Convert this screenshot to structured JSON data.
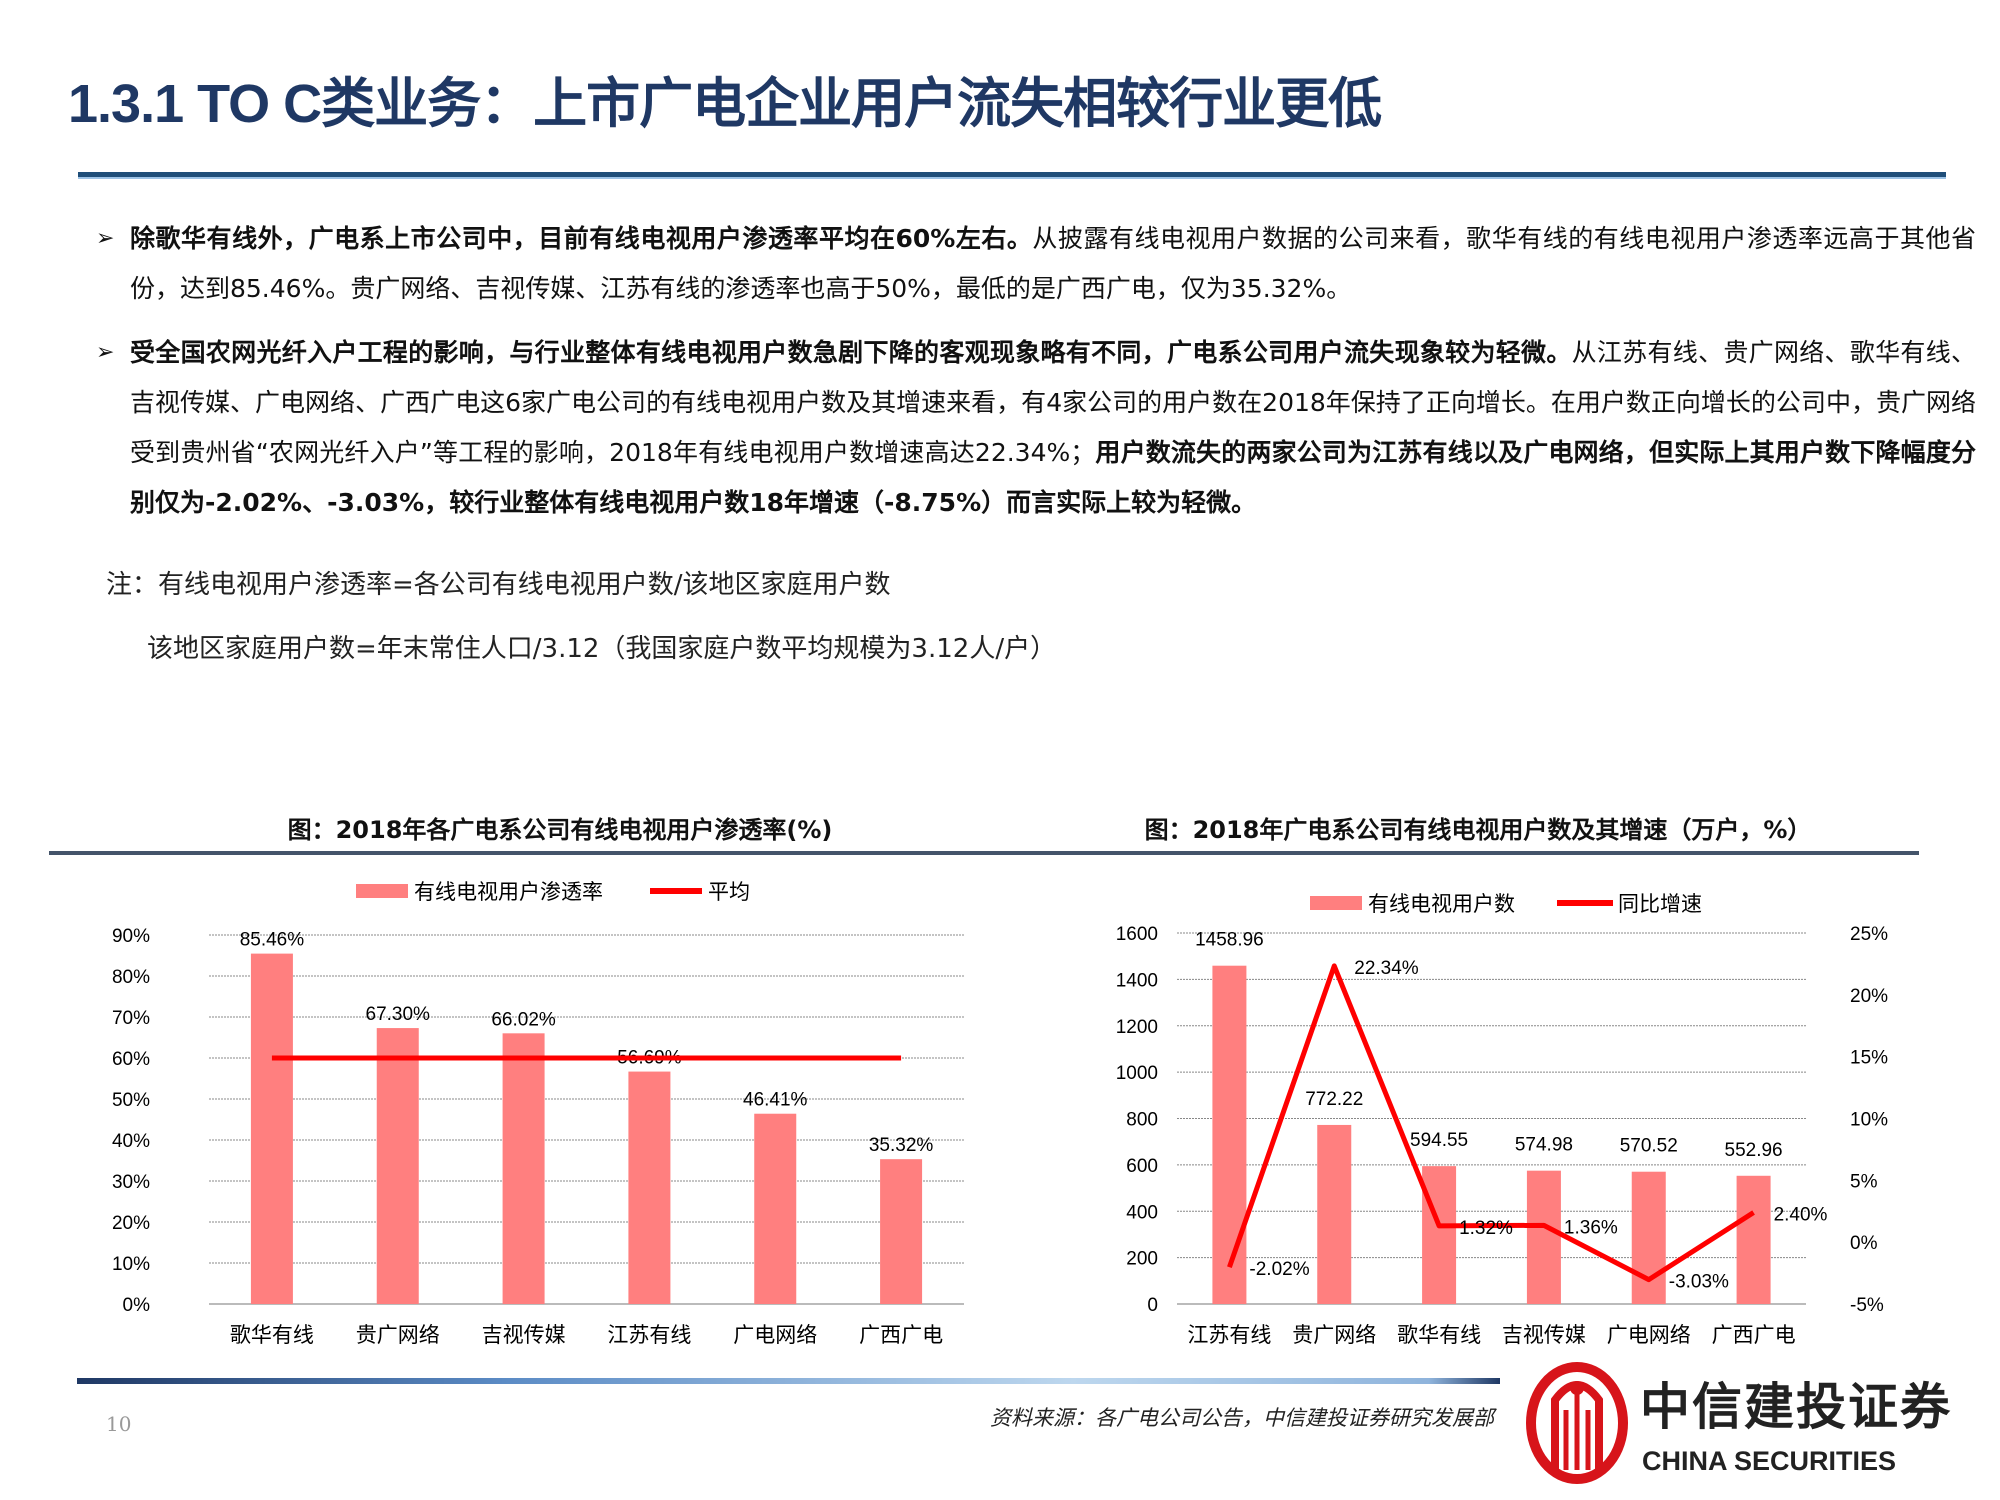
{
  "title": "1.3.1 TO C类业务：上市广电企业用户流失相较行业更低",
  "bullets": [
    {
      "segments": [
        {
          "bold": true,
          "text": "除歌华有线外，广电系上市公司中，目前有线电视用户渗透率平均在60%左右。"
        },
        {
          "bold": false,
          "text": "从披露有线电视用户数据的公司来看，歌华有线的有线电视用户渗透率远高于其他省份，达到85.46%。贵广网络、吉视传媒、江苏有线的渗透率也高于50%，最低的是广西广电，仅为35.32%。"
        }
      ]
    },
    {
      "segments": [
        {
          "bold": true,
          "text": "受全国农网光纤入户工程的影响，与行业整体有线电视用户数急剧下降的客观现象略有不同，广电系公司用户流失现象较为轻微。"
        },
        {
          "bold": false,
          "text": "从江苏有线、贵广网络、歌华有线、吉视传媒、广电网络、广西广电这6家广电公司的有线电视用户数及其增速来看，有4家公司的用户数在2018年保持了正向增长。在用户数正向增长的公司中，贵广网络受到贵州省“农网光纤入户”等工程的影响，2018年有线电视用户数增速高达22.34%；"
        },
        {
          "bold": true,
          "text": "用户数流失的两家公司为江苏有线以及广电网络，但实际上其用户数下降幅度分别仅为-2.02%、-3.03%，较行业整体有线电视用户数18年增速（-8.75%）而言实际上较为轻微。"
        }
      ]
    }
  ],
  "notes": [
    "注：有线电视用户渗透率=各公司有线电视用户数/该地区家庭用户数",
    "该地区家庭用户数=年末常住人口/3.12（我国家庭户数平均规模为3.12人/户）"
  ],
  "colors": {
    "bar": "#ff7f7f",
    "line": "#ff0000",
    "title": "#1f3864",
    "logo": "#d7141a"
  },
  "chart_data": [
    {
      "type": "bar",
      "title": "图：2018年各广电系公司有线电视用户渗透率(%)",
      "categories": [
        "歌华有线",
        "贵广网络",
        "吉视传媒",
        "江苏有线",
        "广电网络",
        "广西广电"
      ],
      "series": [
        {
          "name": "有线电视用户渗透率",
          "type": "bar",
          "values": [
            85.46,
            67.3,
            66.02,
            56.69,
            46.41,
            35.32
          ],
          "labels": [
            "85.46%",
            "67.30%",
            "66.02%",
            "56.69%",
            "46.41%",
            "35.32%"
          ]
        },
        {
          "name": "平均",
          "type": "line",
          "values": [
            60,
            60,
            60,
            60,
            60,
            60
          ]
        }
      ],
      "ylim": [
        0,
        90
      ],
      "yticks": [
        "0%",
        "10%",
        "20%",
        "30%",
        "40%",
        "50%",
        "60%",
        "70%",
        "80%",
        "90%"
      ],
      "grid": true,
      "legend": "top"
    },
    {
      "type": "bar+line",
      "title": "图：2018年广电系公司有线电视用户数及其增速（万户，%）",
      "categories": [
        "江苏有线",
        "贵广网络",
        "歌华有线",
        "吉视传媒",
        "广电网络",
        "广西广电"
      ],
      "series": [
        {
          "name": "有线电视用户数",
          "type": "bar",
          "axis": "left",
          "values": [
            1458.96,
            772.22,
            594.55,
            574.98,
            570.52,
            552.96
          ],
          "labels": [
            "1458.96",
            "772.22",
            "594.55",
            "574.98",
            "570.52",
            "552.96"
          ]
        },
        {
          "name": "同比增速",
          "type": "line",
          "axis": "right",
          "values": [
            -2.02,
            22.34,
            1.32,
            1.36,
            -3.03,
            2.4
          ],
          "labels": [
            "-2.02%",
            "22.34%",
            "1.32%",
            "1.36%",
            "-3.03%",
            "2.40%"
          ]
        }
      ],
      "ylim": [
        0,
        1600
      ],
      "yticks": [
        "0",
        "200",
        "400",
        "600",
        "800",
        "1000",
        "1200",
        "1400",
        "1600"
      ],
      "y2lim": [
        -5,
        25
      ],
      "y2ticks": [
        "-5%",
        "0%",
        "5%",
        "10%",
        "15%",
        "20%",
        "25%"
      ],
      "grid": true,
      "legend": "top"
    }
  ],
  "footer": {
    "page": "10",
    "source": "资料来源：各广电公司公告，中信建投证券研究发展部",
    "logo_cn": "中信建投证券",
    "logo_en": "CHINA SECURITIES"
  }
}
